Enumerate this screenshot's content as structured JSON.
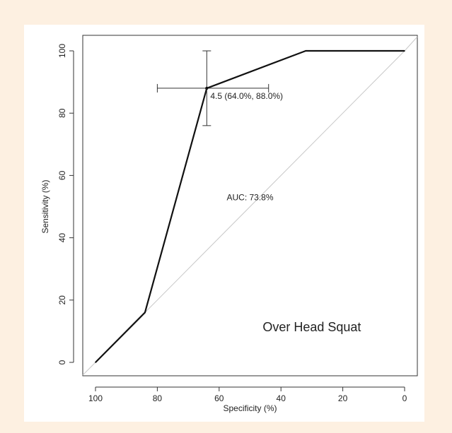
{
  "chart_data": {
    "type": "line",
    "title": "",
    "xlabel": "Specificity (%)",
    "ylabel": "Sensitivity (%)",
    "xlim": [
      100,
      0
    ],
    "ylim": [
      0,
      100
    ],
    "x_reversed": true,
    "x_ticks": [
      100,
      80,
      60,
      40,
      20,
      0
    ],
    "y_ticks": [
      0,
      20,
      40,
      60,
      80,
      100
    ],
    "grid": false,
    "series": [
      {
        "x": [
          100,
          84,
          64,
          32,
          0
        ],
        "y": [
          0,
          16,
          88,
          100,
          100
        ]
      }
    ],
    "reference_line": {
      "from": [
        100,
        0
      ],
      "to": [
        0,
        100
      ],
      "color": "#c8c8c8"
    },
    "highlight_point": {
      "x": 64,
      "y": 88,
      "x_error": [
        44,
        80
      ],
      "y_error": [
        76,
        100
      ],
      "label": "4.5 (64.0%, 88.0%)"
    },
    "annotations": [
      {
        "text": "AUC: 73.8%",
        "x": 50,
        "y": 52
      },
      {
        "text": "Over Head Squat",
        "x": 30,
        "y": 10
      }
    ],
    "colors": {
      "line": "#111111",
      "diagonal": "#c8c8c8",
      "background": "#fdf0e1",
      "panel": "#ffffff"
    }
  }
}
